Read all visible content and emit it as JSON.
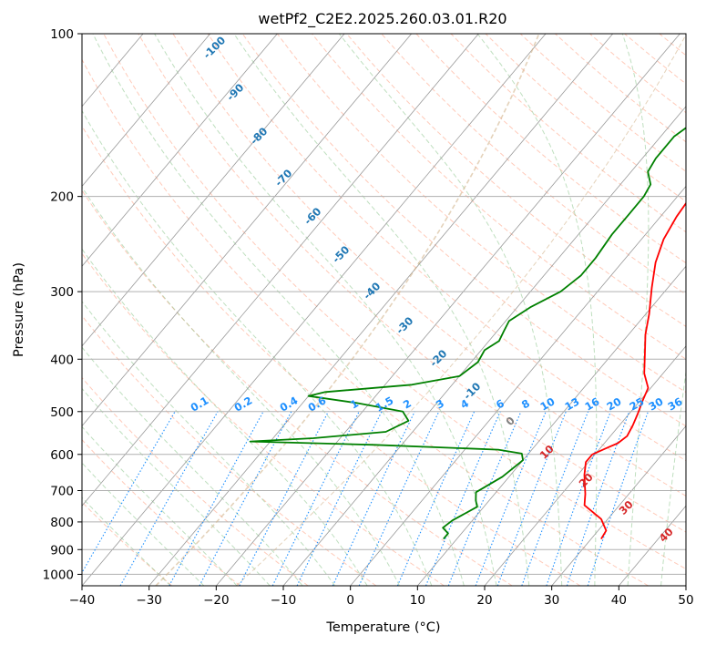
{
  "chart_data": {
    "type": "line",
    "title": "wetPf2_C2E2.2025.260.03.01.R20",
    "xlabel": "Temperature (°C)",
    "ylabel": "Pressure (hPa)",
    "xlim": [
      -40,
      50
    ],
    "ylim": [
      1050,
      100
    ],
    "y_scale": "log",
    "grid": true,
    "x_ticks": [
      -40,
      -30,
      -20,
      -10,
      0,
      10,
      20,
      30,
      40,
      50
    ],
    "x_tick_labels": [
      "−40",
      "−30",
      "−20",
      "−10",
      "0",
      "10",
      "20",
      "30",
      "40",
      "50"
    ],
    "y_ticks": [
      100,
      200,
      300,
      400,
      500,
      600,
      700,
      800,
      900,
      1000
    ],
    "y_tick_labels": [
      "100",
      "200",
      "300",
      "400",
      "500",
      "600",
      "700",
      "800",
      "900",
      "1000"
    ],
    "series": [
      {
        "color": "#ff0000",
        "points": [
          [
            31.5,
            860
          ],
          [
            31.2,
            830
          ],
          [
            29.0,
            790
          ],
          [
            24.8,
            745
          ],
          [
            23.5,
            710
          ],
          [
            21.0,
            655
          ],
          [
            19.6,
            620
          ],
          [
            19.6,
            600
          ],
          [
            21.0,
            583
          ],
          [
            22.0,
            572
          ],
          [
            22.5,
            555
          ],
          [
            22.0,
            530
          ],
          [
            21.3,
            505
          ],
          [
            20.4,
            478
          ],
          [
            19.6,
            452
          ],
          [
            17.2,
            425
          ],
          [
            15.0,
            393
          ],
          [
            12.5,
            360
          ],
          [
            10.5,
            330
          ],
          [
            7.6,
            295
          ],
          [
            5.0,
            265
          ],
          [
            3.3,
            240
          ],
          [
            2.4,
            218
          ],
          [
            2.1,
            205
          ],
          [
            1.8,
            190
          ],
          [
            1.2,
            170
          ],
          [
            1.0,
            155
          ],
          [
            1.2,
            140
          ],
          [
            1.2,
            128
          ],
          [
            2.4,
            115
          ],
          [
            3.0,
            104
          ],
          [
            3.8,
            100
          ]
        ]
      },
      {
        "color": "#008000",
        "points": [
          [
            8.0,
            860
          ],
          [
            8.0,
            840
          ],
          [
            6.5,
            820
          ],
          [
            7.0,
            795
          ],
          [
            9.0,
            750
          ],
          [
            8.0,
            730
          ],
          [
            7.0,
            705
          ],
          [
            9.0,
            660
          ],
          [
            10.0,
            615
          ],
          [
            9.0,
            598
          ],
          [
            5.0,
            588
          ],
          [
            -14.0,
            576
          ],
          [
            -33.0,
            568
          ],
          [
            -24.0,
            560
          ],
          [
            -14.0,
            545
          ],
          [
            -12.0,
            520
          ],
          [
            -14.0,
            500
          ],
          [
            -22.0,
            482
          ],
          [
            -30.0,
            468
          ],
          [
            -28.0,
            460
          ],
          [
            -16.0,
            446
          ],
          [
            -10.0,
            430
          ],
          [
            -9.0,
            405
          ],
          [
            -9.5,
            385
          ],
          [
            -8.5,
            370
          ],
          [
            -9.0,
            355
          ],
          [
            -9.5,
            340
          ],
          [
            -8.0,
            320
          ],
          [
            -5.5,
            300
          ],
          [
            -4.5,
            280
          ],
          [
            -4.5,
            260
          ],
          [
            -5.0,
            235
          ],
          [
            -5.0,
            215
          ],
          [
            -5.0,
            200
          ],
          [
            -5.5,
            190
          ],
          [
            -7.5,
            180
          ],
          [
            -8.0,
            170
          ],
          [
            -8.0,
            155
          ],
          [
            -6.5,
            143
          ],
          [
            -4.5,
            133
          ],
          [
            -1.0,
            124
          ],
          [
            0.5,
            116
          ],
          [
            0.5,
            109
          ],
          [
            2.0,
            100
          ]
        ]
      }
    ],
    "isotherm_labels": [
      "-100",
      "-90",
      "-80",
      "-70",
      "-60",
      "-50",
      "-40",
      "-30",
      "-20",
      "-10"
    ],
    "isotherm_label_color": "#1f77b4",
    "moist_adiabat_labels": [
      "0",
      "10",
      "20",
      "30",
      "40"
    ],
    "moist_adiabat_label_colors": [
      "#7f7f7f",
      "#d62728",
      "#d62728",
      "#d62728",
      "#d62728"
    ],
    "mixing_ratio_labels": [
      "0.1",
      "0.2",
      "0.4",
      "0.6",
      "1",
      "1.5",
      "2",
      "3",
      "4",
      "6",
      "8",
      "10",
      "13",
      "16",
      "20",
      "25",
      "30",
      "36"
    ],
    "mixing_ratio_label_color": "#1e90ff",
    "colors": {
      "isobar_grid": "#b0b0b0",
      "isotherm": "#999999",
      "dry_adiabat": "#ff9f80",
      "moist_adiabat": "#7fbf7f",
      "mixing_ratio": "#1e90ff",
      "ccn_curve": "#d2b48c"
    }
  }
}
